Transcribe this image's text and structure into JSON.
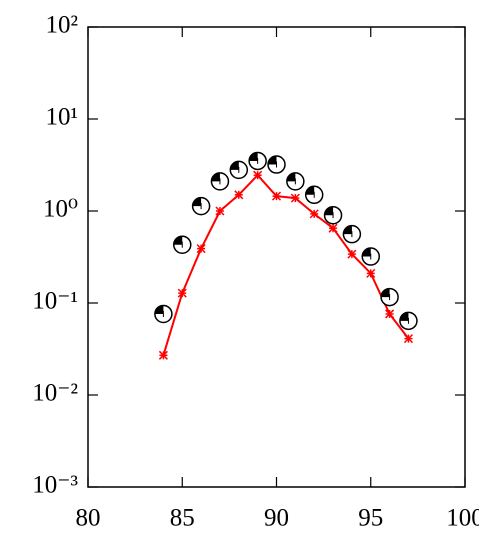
{
  "chart_data": {
    "type": "line",
    "log_y": true,
    "x": [
      84,
      85,
      86,
      87,
      88,
      89,
      90,
      91,
      92,
      93,
      94,
      95,
      96,
      97
    ],
    "series": [
      {
        "color": "#ff0000",
        "marker": "star",
        "line": true,
        "values": [
          0.027,
          0.128,
          0.39,
          1.0,
          1.5,
          2.45,
          1.45,
          1.38,
          0.93,
          0.65,
          0.34,
          0.21,
          0.076,
          0.041
        ]
      },
      {
        "color": "#000000",
        "marker": "half-circle",
        "line": false,
        "values": [
          0.076,
          0.43,
          1.13,
          2.1,
          2.8,
          3.5,
          3.2,
          2.1,
          1.5,
          0.9,
          0.56,
          0.32,
          0.116,
          0.064
        ]
      }
    ],
    "xlim": [
      80,
      100
    ],
    "xticks": [
      80,
      85,
      90,
      95,
      100
    ],
    "ylim": [
      0.001,
      100
    ],
    "yticks": [
      {
        "value": 0.001,
        "label": "10⁻³"
      },
      {
        "value": 0.01,
        "label": "10⁻²"
      },
      {
        "value": 0.1,
        "label": "10⁻¹"
      },
      {
        "value": 1,
        "label": "10⁰"
      },
      {
        "value": 10,
        "label": "10¹"
      },
      {
        "value": 100,
        "label": "10²"
      }
    ]
  }
}
